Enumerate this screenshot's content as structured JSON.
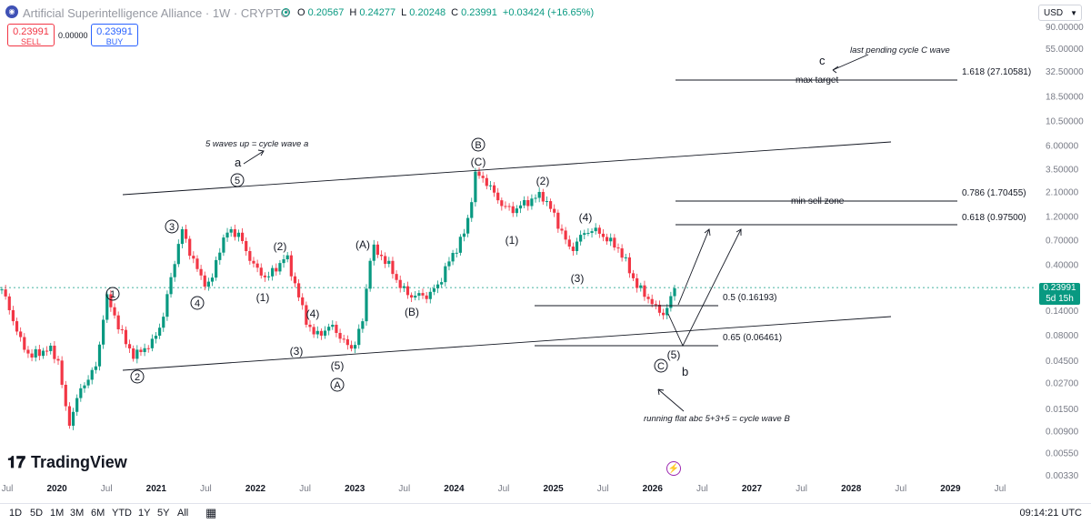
{
  "header": {
    "symbol_icon": "asi-logo-icon",
    "title": "Artificial Superintelligence Alliance · 1W · CRYPTO",
    "market_status_color": "#089981",
    "ohlc": {
      "o_key": "O",
      "o_val": "0.20567",
      "h_key": "H",
      "h_val": "0.24277",
      "l_key": "L",
      "l_val": "0.20248",
      "c_key": "C",
      "c_val": "0.23991",
      "change": "+0.03424 (+16.65%)"
    },
    "sell": {
      "price": "0.23991",
      "label": "SELL"
    },
    "buy": {
      "price": "0.23991",
      "label": "BUY"
    },
    "spread": "0.00000",
    "currency": "USD"
  },
  "chart_data": {
    "type": "line",
    "scale": "log",
    "yaxis_labels": [
      "90.00000",
      "55.00000",
      "32.50000",
      "18.50000",
      "10.50000",
      "6.00000",
      "3.50000",
      "2.10000",
      "1.20000",
      "0.70000",
      "0.40000",
      "0.14000",
      "0.08000",
      "0.04500",
      "0.02700",
      "0.01500",
      "0.00900",
      "0.00550",
      "0.00330"
    ],
    "xaxis_labels": [
      "Jul",
      "2020",
      "Jul",
      "2021",
      "Jul",
      "2022",
      "Jul",
      "2023",
      "Jul",
      "2024",
      "Jul",
      "2025",
      "Jul",
      "2026",
      "Jul",
      "2027",
      "Jul",
      "2028",
      "Jul",
      "2029",
      "Jul"
    ],
    "current_price": "0.23991",
    "current_countdown": "5d 15h",
    "series": [
      {
        "values_approx": [
          0.23,
          0.13,
          0.07,
          0.05,
          0.055,
          0.06,
          0.045,
          0.01,
          0.02,
          0.03,
          0.04,
          0.2,
          0.12,
          0.07,
          0.05,
          0.06,
          0.07,
          0.12,
          0.35,
          0.9,
          0.5,
          0.3,
          0.25,
          0.6,
          0.9,
          0.8,
          0.5,
          0.35,
          0.3,
          0.38,
          0.5,
          0.25,
          0.12,
          0.08,
          0.09,
          0.1,
          0.07,
          0.06,
          0.1,
          0.6,
          0.5,
          0.38,
          0.25,
          0.2,
          0.2,
          0.2,
          0.25,
          0.4,
          0.6,
          0.9,
          3.2,
          2.8,
          2.0,
          1.5,
          1.4,
          1.6,
          1.8,
          2.0,
          1.4,
          0.9,
          0.55,
          0.75,
          0.9,
          0.85,
          0.7,
          0.6,
          0.4,
          0.25,
          0.2,
          0.15,
          0.13,
          0.24
        ]
      }
    ],
    "levels": [
      {
        "label": "1.618 (27.10581)",
        "note": "max target"
      },
      {
        "label": "0.786 (1.70455)",
        "note": "min sell zone"
      },
      {
        "label": "0.618 (0.97500)",
        "note": ""
      },
      {
        "label": "0.5 (0.16193)",
        "note": ""
      },
      {
        "label": "0.65 (0.06461)",
        "note": ""
      }
    ],
    "annotations": {
      "wave_a_note": "5 waves up = cycle wave a",
      "wave_c_note": "last pending  cycle C wave",
      "wave_b_note": "running flat abc 5+3+5 = cycle wave B"
    },
    "wave_labels": {
      "a": "a",
      "b": "b",
      "c": "c",
      "c1": "1",
      "c2": "2",
      "c3": "3",
      "c4": "4",
      "c5": "5",
      "p1": "(1)",
      "p2": "(2)",
      "p3": "(3)",
      "p4": "(4)",
      "p5": "(5)",
      "pA": "(A)",
      "pB": "(B)",
      "pC": "(C)",
      "cA": "A",
      "cB": "B",
      "cC": "C",
      "q1": "(1)",
      "q2": "(2)",
      "q3": "(3)",
      "q4": "(4)",
      "q5": "(5)"
    },
    "grid": false
  },
  "footer": {
    "brand": "TradingView",
    "ranges": [
      "1D",
      "5D",
      "1M",
      "3M",
      "6M",
      "YTD",
      "1Y",
      "5Y",
      "All"
    ],
    "calendar_icon": "calendar-icon",
    "bolt_icon": "lightning-icon",
    "clock": "09:14:21 UTC"
  },
  "colors": {
    "up": "#089981",
    "down": "#f23645",
    "accent": "#2962ff",
    "line": "#131722"
  }
}
